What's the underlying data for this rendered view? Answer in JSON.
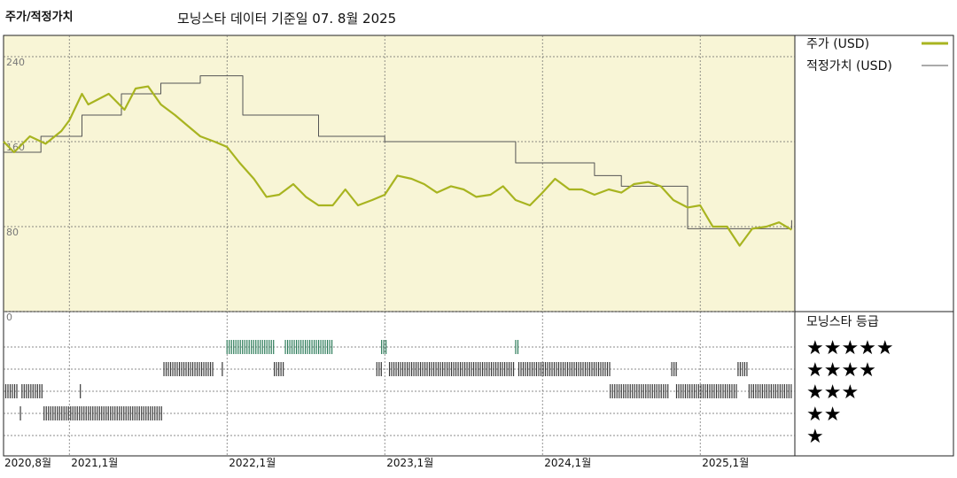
{
  "header": {
    "title": "주가/적정가치",
    "subtitle": "모닝스타 데이터 기준일 07. 8월 2025"
  },
  "colors": {
    "price": "#a8b420",
    "fair": "#555555",
    "plot_bg": "#f8f5d6",
    "rating_green": "#2e7d5b",
    "rating_dark": "#3a3a3a"
  },
  "chart_data": {
    "type": "line",
    "y_ticks": [
      "240",
      "160",
      "80",
      "0"
    ],
    "ylim": [
      0,
      260
    ],
    "x_ticks": [
      "2020,8월",
      "2021,1월",
      "2022,1월",
      "2023,1월",
      "2024,1월",
      "2025,1월"
    ],
    "x_tick_dates": [
      2020.583,
      2021.0,
      2022.0,
      2023.0,
      2024.0,
      2025.0
    ],
    "xlim": [
      2020.583,
      2025.6
    ],
    "grid": true,
    "legend_position": "right",
    "series": [
      {
        "name": "주가 (USD)",
        "x": [
          2020.583,
          2020.65,
          2020.75,
          2020.85,
          2020.95,
          2021.0,
          2021.08,
          2021.12,
          2021.25,
          2021.35,
          2021.42,
          2021.5,
          2021.58,
          2021.67,
          2021.75,
          2021.83,
          2021.92,
          2022.0,
          2022.08,
          2022.17,
          2022.25,
          2022.33,
          2022.42,
          2022.5,
          2022.58,
          2022.67,
          2022.75,
          2022.83,
          2022.92,
          2023.0,
          2023.08,
          2023.17,
          2023.25,
          2023.33,
          2023.42,
          2023.5,
          2023.58,
          2023.67,
          2023.75,
          2023.83,
          2023.92,
          2024.0,
          2024.08,
          2024.17,
          2024.25,
          2024.33,
          2024.42,
          2024.5,
          2024.58,
          2024.67,
          2024.75,
          2024.83,
          2024.92,
          2025.0,
          2025.08,
          2025.17,
          2025.25,
          2025.33,
          2025.42,
          2025.5,
          2025.58
        ],
        "y": [
          160,
          150,
          165,
          158,
          170,
          180,
          205,
          195,
          205,
          190,
          210,
          212,
          195,
          185,
          175,
          165,
          160,
          155,
          140,
          125,
          108,
          110,
          120,
          108,
          100,
          100,
          115,
          100,
          105,
          110,
          128,
          125,
          120,
          112,
          118,
          115,
          108,
          110,
          118,
          105,
          100,
          112,
          125,
          115,
          115,
          110,
          115,
          112,
          120,
          122,
          118,
          105,
          98,
          100,
          80,
          80,
          62,
          78,
          80,
          84,
          77
        ]
      },
      {
        "name": "적정가치 (USD)",
        "x": [
          2020.583,
          2020.82,
          2020.82,
          2021.08,
          2021.08,
          2021.33,
          2021.33,
          2021.58,
          2021.58,
          2021.83,
          2021.83,
          2022.1,
          2022.1,
          2022.58,
          2022.58,
          2023.0,
          2023.0,
          2023.83,
          2023.83,
          2024.33,
          2024.33,
          2024.5,
          2024.5,
          2024.92,
          2024.92,
          2025.58,
          2025.58
        ],
        "y": [
          150,
          150,
          165,
          165,
          185,
          185,
          205,
          205,
          215,
          215,
          222,
          222,
          185,
          185,
          165,
          165,
          160,
          160,
          140,
          140,
          128,
          128,
          118,
          118,
          78,
          78,
          86
        ]
      }
    ]
  },
  "rating": {
    "title": "모닝스타 등급",
    "levels": [
      "★★★★★",
      "★★★★",
      "★★★",
      "★★",
      "★"
    ],
    "periods": [
      {
        "level": 3,
        "from": 2020.583,
        "to": 2020.67
      },
      {
        "level": 2,
        "from": 2020.69,
        "to": 2020.7
      },
      {
        "level": 3,
        "from": 2020.7,
        "to": 2020.83
      },
      {
        "level": 2,
        "from": 2020.84,
        "to": 2021.59
      },
      {
        "level": 3,
        "from": 2021.07,
        "to": 2021.08
      },
      {
        "level": 4,
        "from": 2021.6,
        "to": 2021.92
      },
      {
        "level": 4,
        "from": 2021.97,
        "to": 2021.98
      },
      {
        "level": 5,
        "from": 2022.0,
        "to": 2022.3
      },
      {
        "level": 4,
        "from": 2022.3,
        "to": 2022.36
      },
      {
        "level": 5,
        "from": 2022.37,
        "to": 2022.67
      },
      {
        "level": 4,
        "from": 2022.95,
        "to": 2022.98
      },
      {
        "level": 5,
        "from": 2022.98,
        "to": 2023.02
      },
      {
        "level": 4,
        "from": 2023.03,
        "to": 2023.83
      },
      {
        "level": 5,
        "from": 2023.83,
        "to": 2023.85
      },
      {
        "level": 4,
        "from": 2023.85,
        "to": 2024.43
      },
      {
        "level": 3,
        "from": 2024.43,
        "to": 2024.8
      },
      {
        "level": 4,
        "from": 2024.82,
        "to": 2024.85
      },
      {
        "level": 3,
        "from": 2024.85,
        "to": 2025.23
      },
      {
        "level": 4,
        "from": 2025.24,
        "to": 2025.3
      },
      {
        "level": 3,
        "from": 2025.31,
        "to": 2025.58
      }
    ]
  }
}
